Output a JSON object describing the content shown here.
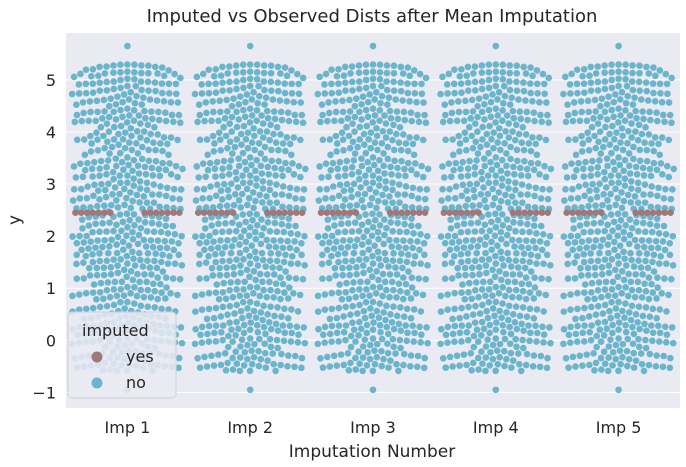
{
  "chart_data": {
    "type": "swarm",
    "title": "Imputed vs Observed Dists after Mean Imputation",
    "xlabel": "Imputation Number",
    "ylabel": "y",
    "categories": [
      "Imp 1",
      "Imp 2",
      "Imp 3",
      "Imp 4",
      "Imp 5"
    ],
    "ylim": [
      -1.3,
      5.9
    ],
    "yticks": [
      -1,
      0,
      1,
      2,
      3,
      4,
      5
    ],
    "grid": true,
    "legend": {
      "title": "imputed",
      "placement": "bottom-left",
      "entries": [
        {
          "label": "yes",
          "color": "#a0787a"
        },
        {
          "label": "no",
          "color": "#6ab4cc"
        }
      ]
    },
    "imputed_value": 2.45,
    "observed_distribution": {
      "n_per_category": 620,
      "mean": 2.5,
      "min": -0.95,
      "max": 5.65,
      "outlier_values": [
        -0.95,
        5.65
      ]
    },
    "imputed_count_per_category": 14,
    "colors": {
      "background": "#eaeaf2",
      "grid": "#ffffff",
      "observed": "#6ab4cc",
      "imputed": "#a0787a"
    }
  }
}
